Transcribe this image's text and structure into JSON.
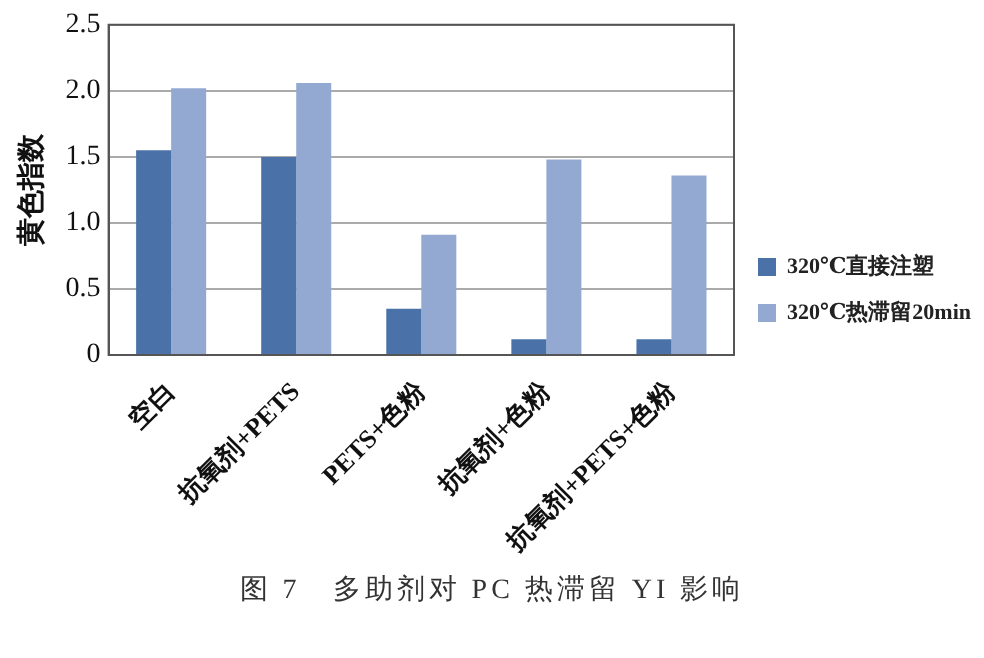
{
  "chart_data": {
    "type": "bar",
    "ylabel": "黄色指数",
    "categories": [
      "空白",
      "抗氧剂+PETS",
      "PETS+色粉",
      "抗氧剂+色粉",
      "抗氧剂+PETS+色粉"
    ],
    "series": [
      {
        "name": "320℃直接注塑",
        "color": "#4a72a8",
        "values": [
          1.55,
          1.5,
          0.35,
          0.12,
          0.12
        ]
      },
      {
        "name": "320℃热滞留20min",
        "color": "#93a9d2",
        "values": [
          2.02,
          2.06,
          0.91,
          1.48,
          1.36
        ]
      }
    ],
    "ylim": [
      0,
      2.5
    ],
    "yticks": [
      0,
      0.5,
      {
        "value": 1,
        "label": "1.0"
      },
      1.5,
      {
        "value": 2,
        "label": "2.0"
      },
      2.5
    ],
    "grid": "y",
    "legend": "right",
    "annotations": [
      "图 7　多助剂对 PC 热滞留 YI 影响"
    ]
  }
}
